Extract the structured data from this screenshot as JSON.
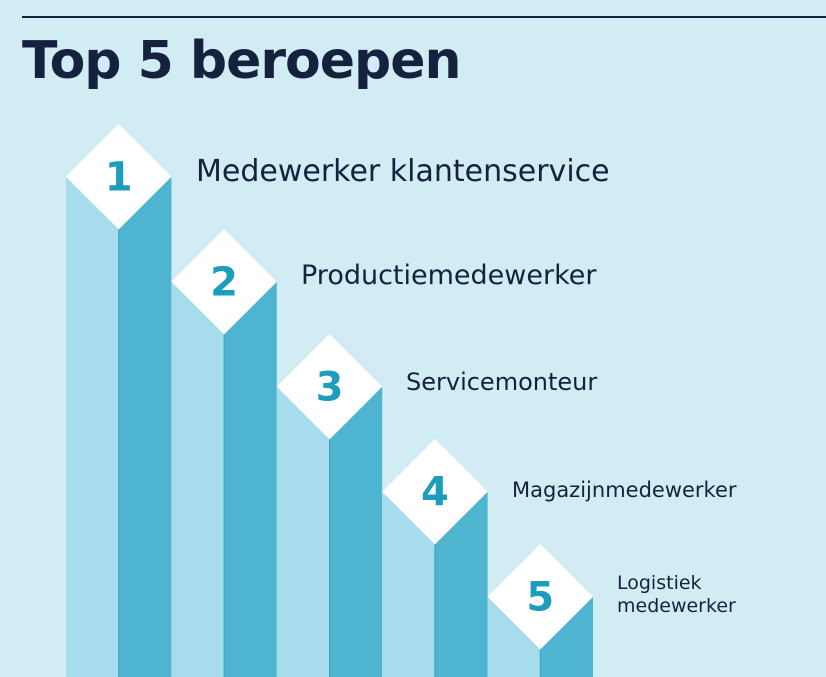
{
  "title": "Top 5 beroepen",
  "colors": {
    "background": "#d2ecf4",
    "title": "#15223d",
    "bar_light": "#a6dcec",
    "bar_dark": "#4fb4cf",
    "bar_edge": "#3b9fbd",
    "diamond": "#ffffff",
    "number": "#1d9dbc"
  },
  "ranking": [
    {
      "rank": "1",
      "occupation": "Medewerker klantenservice"
    },
    {
      "rank": "2",
      "occupation": "Productiemedewerker"
    },
    {
      "rank": "3",
      "occupation": "Servicemonteur"
    },
    {
      "rank": "4",
      "occupation": "Magazijnmedewerker"
    },
    {
      "rank": "5",
      "occupation": "Logistiek\nmedewerker"
    }
  ]
}
